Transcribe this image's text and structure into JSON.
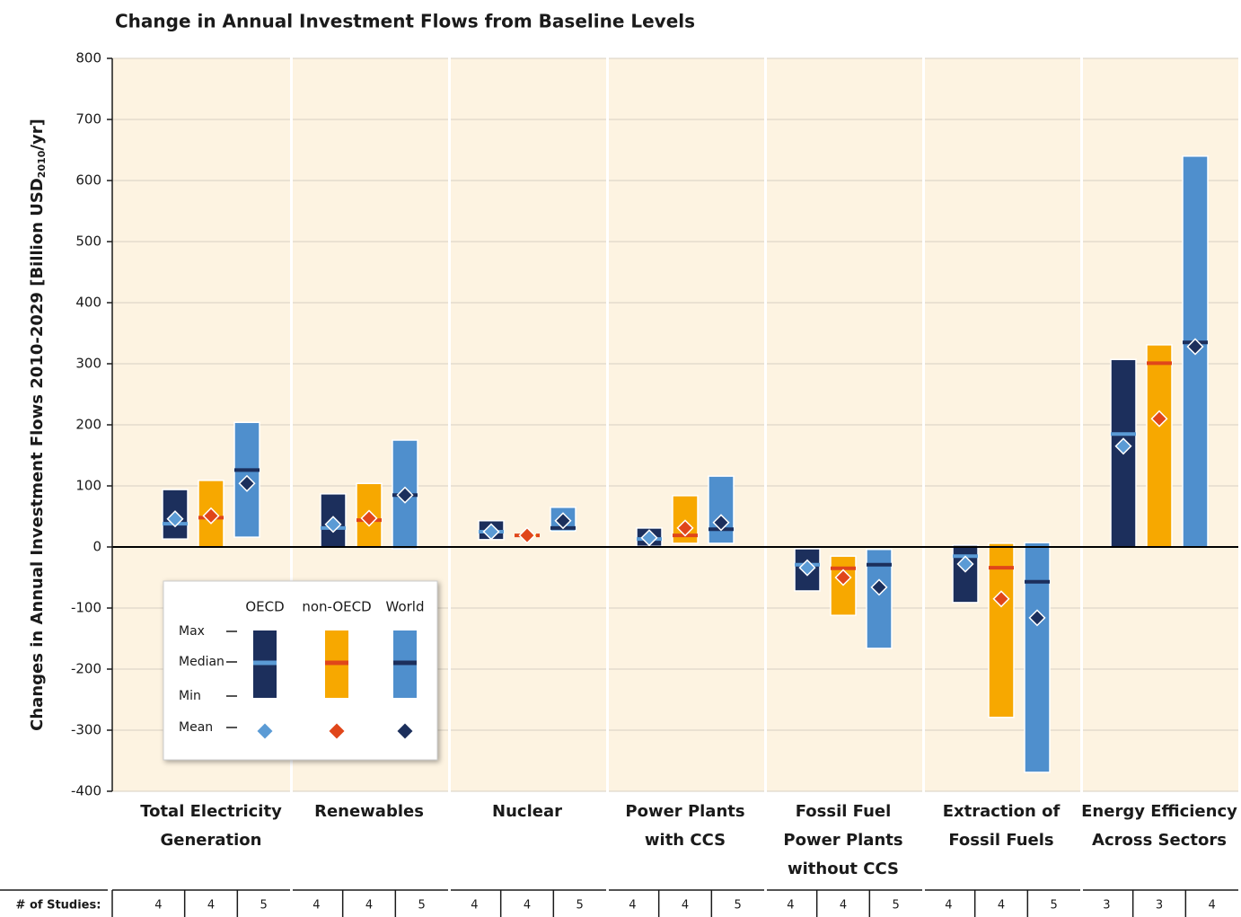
{
  "chart_data": {
    "type": "range-bar",
    "title": "Change in Annual Investment Flows from Baseline Levels",
    "ylabel": [
      "Changes in Annual Investment Flows 2010-2029 [Billion USD",
      "2010",
      "/yr]"
    ],
    "categories": [
      [
        "Total Electricity",
        "Generation"
      ],
      [
        "Renewables"
      ],
      [
        "Nuclear"
      ],
      [
        "Power Plants",
        "with CCS"
      ],
      [
        "Fossil Fuel",
        "Power Plants",
        "without CCS"
      ],
      [
        "Extraction of",
        "Fossil Fuels"
      ],
      [
        "Energy Efficiency",
        "Across Sectors"
      ]
    ],
    "ylim": [
      -400,
      800
    ],
    "yticks": [
      -400,
      -300,
      -200,
      -100,
      0,
      100,
      200,
      300,
      400,
      500,
      600,
      700,
      800
    ],
    "grid": true,
    "series": [
      {
        "name": "OECD",
        "color": "#1c2f5c",
        "median_color": "#5b9bd5",
        "mean_color": "#5b9bd5",
        "max": [
          94,
          87,
          43,
          31,
          -3,
          3,
          307
        ],
        "min": [
          13,
          0,
          12,
          1,
          -72,
          -91,
          0
        ],
        "median": [
          38,
          31,
          25,
          13,
          -29,
          -15,
          185
        ],
        "mean": [
          46,
          37,
          25,
          15,
          -34,
          -28,
          165
        ],
        "studies": [
          4,
          4,
          4,
          4,
          4,
          4,
          3
        ]
      },
      {
        "name": "non-OECD",
        "color": "#f7a800",
        "median_color": "#e0461a",
        "mean_color": "#e0461a",
        "max": [
          109,
          104,
          19,
          84,
          -15,
          6,
          331
        ],
        "min": [
          0,
          0,
          19,
          6,
          -112,
          -279,
          0
        ],
        "median": [
          48,
          44,
          19,
          19,
          -35,
          -34,
          301
        ],
        "mean": [
          51,
          47,
          19,
          31,
          -50,
          -85,
          210
        ],
        "studies": [
          4,
          4,
          4,
          4,
          4,
          4,
          3
        ]
      },
      {
        "name": "World",
        "color": "#4f8fcd",
        "median_color": "#1c2f5c",
        "mean_color": "#1c2f5c",
        "max": [
          204,
          175,
          65,
          116,
          -4,
          7,
          640
        ],
        "min": [
          16,
          -3,
          26,
          6,
          -166,
          -369,
          0
        ],
        "median": [
          126,
          85,
          31,
          29,
          -29,
          -57,
          335
        ],
        "mean": [
          104,
          85,
          43,
          40,
          -66,
          -116,
          328
        ],
        "studies": [
          5,
          5,
          5,
          5,
          5,
          5,
          4
        ]
      }
    ],
    "legend_labels": {
      "max": "Max",
      "median": "Median",
      "min": "Min",
      "mean": "Mean"
    },
    "studies_label": "# of Studies:"
  }
}
